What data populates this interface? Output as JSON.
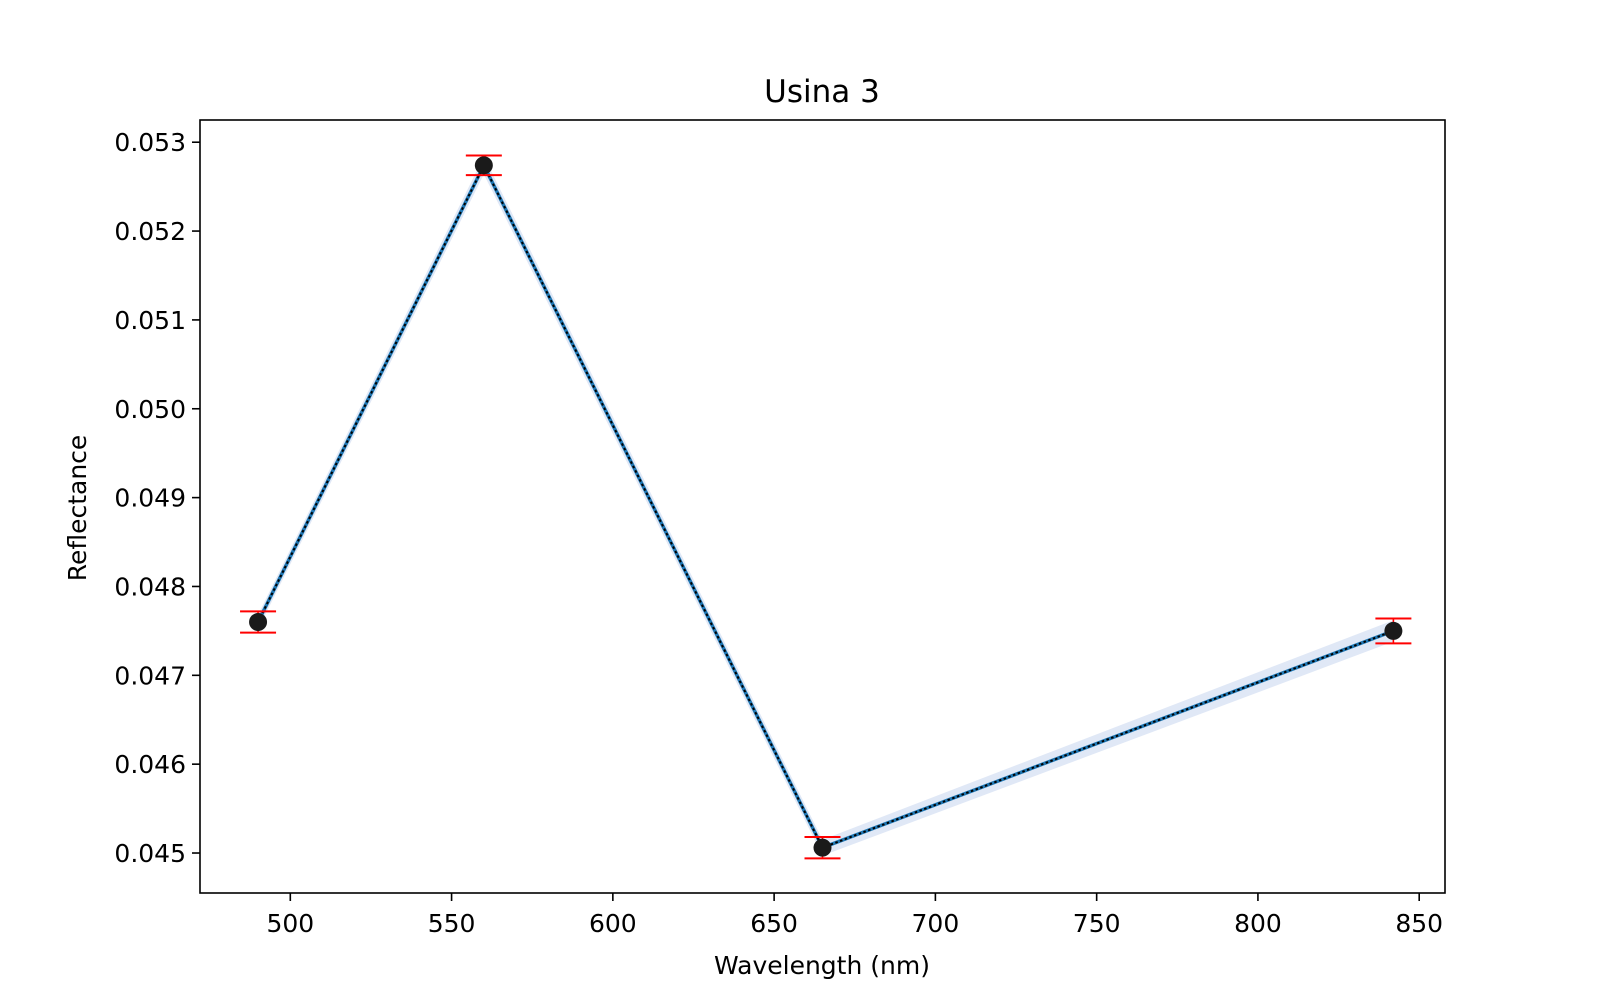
{
  "chart_data": {
    "type": "line",
    "title": "Usina 3",
    "xlabel": "Wavelength (nm)",
    "ylabel": "Reflectance",
    "xlim": [
      472,
      858
    ],
    "ylim": [
      0.04455,
      0.05325
    ],
    "x_ticks": [
      500,
      550,
      600,
      650,
      700,
      750,
      800,
      850
    ],
    "x_tick_labels": [
      "500",
      "550",
      "600",
      "650",
      "700",
      "750",
      "800",
      "850"
    ],
    "y_ticks": [
      0.045,
      0.046,
      0.047,
      0.048,
      0.049,
      0.05,
      0.051,
      0.052,
      0.053
    ],
    "y_tick_labels": [
      "0.045",
      "0.046",
      "0.047",
      "0.048",
      "0.049",
      "0.050",
      "0.051",
      "0.052",
      "0.053"
    ],
    "grid": false,
    "series": [
      {
        "x": [
          490,
          560,
          665,
          842
        ],
        "values": [
          0.0476,
          0.05274,
          0.04506,
          0.0475
        ],
        "error": [
          0.00012,
          0.00011,
          0.00012,
          0.00014
        ],
        "band": [
          8e-05,
          0.0001,
          9e-05,
          0.00012
        ],
        "line_color": "#1f77b4",
        "marker_color": "#1a1a1a",
        "errorbar_color": "#ff0000",
        "band_color": "#c6d6ee"
      }
    ]
  }
}
